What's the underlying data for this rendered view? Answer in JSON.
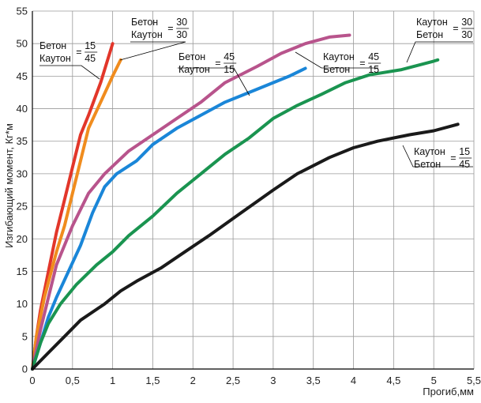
{
  "chart_data": {
    "type": "line",
    "title": "",
    "xlabel": "Прогиб,мм",
    "ylabel": "Изгибающий момент, Кг*м",
    "xlim": [
      0,
      5.5
    ],
    "ylim": [
      0,
      55
    ],
    "x_ticks": [
      {
        "v": 0,
        "t": "0"
      },
      {
        "v": 0.5,
        "t": "0,5"
      },
      {
        "v": 1,
        "t": "1"
      },
      {
        "v": 1.5,
        "t": "1,5"
      },
      {
        "v": 2,
        "t": "2"
      },
      {
        "v": 2.5,
        "t": "2,5"
      },
      {
        "v": 3,
        "t": "3"
      },
      {
        "v": 3.5,
        "t": "3,5"
      },
      {
        "v": 4,
        "t": "4"
      },
      {
        "v": 4.5,
        "t": "4,5"
      },
      {
        "v": 5,
        "t": "5"
      },
      {
        "v": 5.5,
        "t": "5,5"
      }
    ],
    "y_ticks": [
      {
        "v": 0,
        "t": "0"
      },
      {
        "v": 5,
        "t": "5"
      },
      {
        "v": 10,
        "t": "10"
      },
      {
        "v": 15,
        "t": "15"
      },
      {
        "v": 20,
        "t": "20"
      },
      {
        "v": 25,
        "t": "25"
      },
      {
        "v": 30,
        "t": "30"
      },
      {
        "v": 35,
        "t": "35"
      },
      {
        "v": 40,
        "t": "40"
      },
      {
        "v": 45,
        "t": "45"
      },
      {
        "v": 50,
        "t": "50"
      },
      {
        "v": 55,
        "t": "55"
      }
    ],
    "grid": true,
    "series": [
      {
        "name": "red",
        "color": "#e2362a",
        "points": [
          [
            0,
            0
          ],
          [
            0.05,
            5
          ],
          [
            0.1,
            9
          ],
          [
            0.2,
            15
          ],
          [
            0.3,
            21
          ],
          [
            0.4,
            26
          ],
          [
            0.5,
            31
          ],
          [
            0.6,
            36
          ],
          [
            0.7,
            39
          ],
          [
            0.85,
            44
          ],
          [
            1.0,
            50
          ]
        ]
      },
      {
        "name": "orange",
        "color": "#f08c1e",
        "points": [
          [
            0,
            0
          ],
          [
            0.05,
            5
          ],
          [
            0.15,
            11
          ],
          [
            0.3,
            18
          ],
          [
            0.4,
            22
          ],
          [
            0.5,
            27
          ],
          [
            0.6,
            32
          ],
          [
            0.7,
            37
          ],
          [
            0.85,
            41
          ],
          [
            1.0,
            45
          ],
          [
            1.1,
            47.5
          ]
        ]
      },
      {
        "name": "magenta",
        "color": "#b8548c",
        "points": [
          [
            0,
            0
          ],
          [
            0.1,
            6
          ],
          [
            0.2,
            11
          ],
          [
            0.3,
            16
          ],
          [
            0.5,
            22
          ],
          [
            0.7,
            27
          ],
          [
            0.9,
            30
          ],
          [
            1.2,
            33.5
          ],
          [
            1.5,
            36
          ],
          [
            1.8,
            38.5
          ],
          [
            2.1,
            41
          ],
          [
            2.4,
            44
          ],
          [
            2.8,
            46.5
          ],
          [
            3.1,
            48.5
          ],
          [
            3.4,
            50
          ],
          [
            3.7,
            51
          ],
          [
            3.95,
            51.3
          ]
        ]
      },
      {
        "name": "blue",
        "color": "#1a86d8",
        "points": [
          [
            0,
            0
          ],
          [
            0.1,
            4
          ],
          [
            0.2,
            8
          ],
          [
            0.3,
            11
          ],
          [
            0.45,
            15
          ],
          [
            0.6,
            19
          ],
          [
            0.75,
            24
          ],
          [
            0.9,
            28
          ],
          [
            1.05,
            30
          ],
          [
            1.3,
            32
          ],
          [
            1.5,
            34.5
          ],
          [
            1.8,
            37
          ],
          [
            2.1,
            39
          ],
          [
            2.4,
            41
          ],
          [
            2.7,
            42.5
          ],
          [
            3.0,
            44
          ],
          [
            3.2,
            45
          ],
          [
            3.4,
            46.2
          ]
        ]
      },
      {
        "name": "green",
        "color": "#1a9450",
        "points": [
          [
            0,
            0
          ],
          [
            0.1,
            4
          ],
          [
            0.2,
            7
          ],
          [
            0.35,
            10
          ],
          [
            0.55,
            13
          ],
          [
            0.8,
            16
          ],
          [
            1.0,
            18
          ],
          [
            1.2,
            20.5
          ],
          [
            1.5,
            23.5
          ],
          [
            1.8,
            27
          ],
          [
            2.1,
            30
          ],
          [
            2.4,
            33
          ],
          [
            2.7,
            35.5
          ],
          [
            3.0,
            38.5
          ],
          [
            3.3,
            40.5
          ],
          [
            3.6,
            42.2
          ],
          [
            3.9,
            44
          ],
          [
            4.2,
            45.2
          ],
          [
            4.6,
            46
          ],
          [
            5.0,
            47.3
          ],
          [
            5.05,
            47.5
          ]
        ]
      },
      {
        "name": "black",
        "color": "#1a1a1a",
        "points": [
          [
            0,
            0
          ],
          [
            0.2,
            2.5
          ],
          [
            0.4,
            5
          ],
          [
            0.6,
            7.5
          ],
          [
            0.9,
            10
          ],
          [
            1.1,
            12
          ],
          [
            1.3,
            13.5
          ],
          [
            1.6,
            15.5
          ],
          [
            1.9,
            18
          ],
          [
            2.2,
            20.5
          ],
          [
            2.6,
            24
          ],
          [
            3.0,
            27.5
          ],
          [
            3.3,
            30
          ],
          [
            3.7,
            32.5
          ],
          [
            4.0,
            34
          ],
          [
            4.3,
            35
          ],
          [
            4.7,
            36
          ],
          [
            5.0,
            36.6
          ],
          [
            5.3,
            37.6
          ]
        ]
      }
    ],
    "annotations": [
      {
        "name": "label-beton-15-kauton-45",
        "num": "Бетон",
        "den": "Каутон",
        "a": "15",
        "b": "45"
      },
      {
        "name": "label-beton-30-kauton-30",
        "num": "Бетон",
        "den": "Каутон",
        "a": "30",
        "b": "30"
      },
      {
        "name": "label-beton-45-kauton-15",
        "num": "Бетон",
        "den": "Каутон",
        "a": "45",
        "b": "15"
      },
      {
        "name": "label-kauton-45-beton-15",
        "num": "Каутон",
        "den": "Бетон",
        "a": "45",
        "b": "15"
      },
      {
        "name": "label-kauton-30-beton-30",
        "num": "Каутон",
        "den": "Бетон",
        "a": "30",
        "b": "30"
      },
      {
        "name": "label-kauton-15-beton-45",
        "num": "Каутон",
        "den": "Бетон",
        "a": "15",
        "b": "45"
      }
    ]
  }
}
